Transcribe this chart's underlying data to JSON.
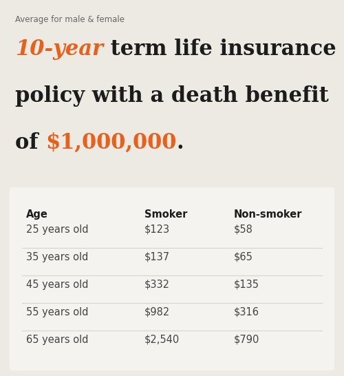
{
  "background_color": "#edeae4",
  "table_background": "#f5f3ef",
  "subtitle": "Average for male & female",
  "subtitle_color": "#666666",
  "subtitle_fontsize": 8.5,
  "orange": "#e8601c",
  "dark": "#1c1c1c",
  "title_fontsize": 22,
  "col_headers": [
    "Age",
    "Smoker",
    "Non-smoker"
  ],
  "col_header_fontsize": 10.5,
  "rows": [
    [
      "25 years old",
      "$123",
      "$58"
    ],
    [
      "35 years old",
      "$137",
      "$65"
    ],
    [
      "45 years old",
      "$332",
      "$135"
    ],
    [
      "55 years old",
      "$982",
      "$316"
    ],
    [
      "65 years old",
      "$2,540",
      "$790"
    ]
  ],
  "row_fontsize": 10.5,
  "row_color": "#444444",
  "separator_color": "#d8d4cc"
}
